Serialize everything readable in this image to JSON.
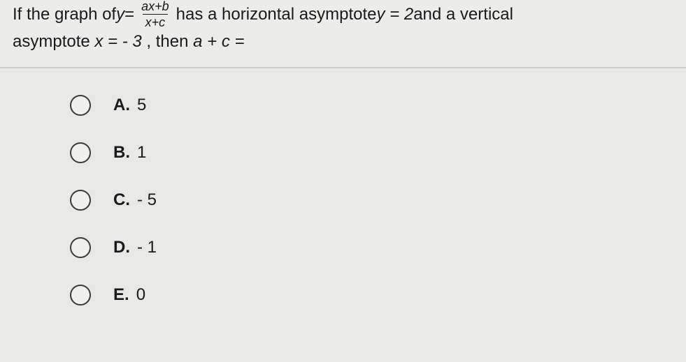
{
  "question": {
    "prefix": "If the graph of ",
    "eq_lhs": "y",
    "eq_sign": " = ",
    "frac_num": "ax+b",
    "frac_den": "x+c",
    "mid": " has a horizontal asymptote ",
    "ha": "y = 2",
    "mid2": " and a vertical",
    "line2a": "asymptote ",
    "va": "x = - 3",
    "line2b": ", then ",
    "expr": "a + c =",
    "background_color": "#e8e8e6",
    "divider_color": "#cfcfcc"
  },
  "options": [
    {
      "letter": "A.",
      "text": "5"
    },
    {
      "letter": "B.",
      "text": "1"
    },
    {
      "letter": "C.",
      "text": "- 5"
    },
    {
      "letter": "D.",
      "text": "- 1"
    },
    {
      "letter": "E.",
      "text": "0"
    }
  ]
}
